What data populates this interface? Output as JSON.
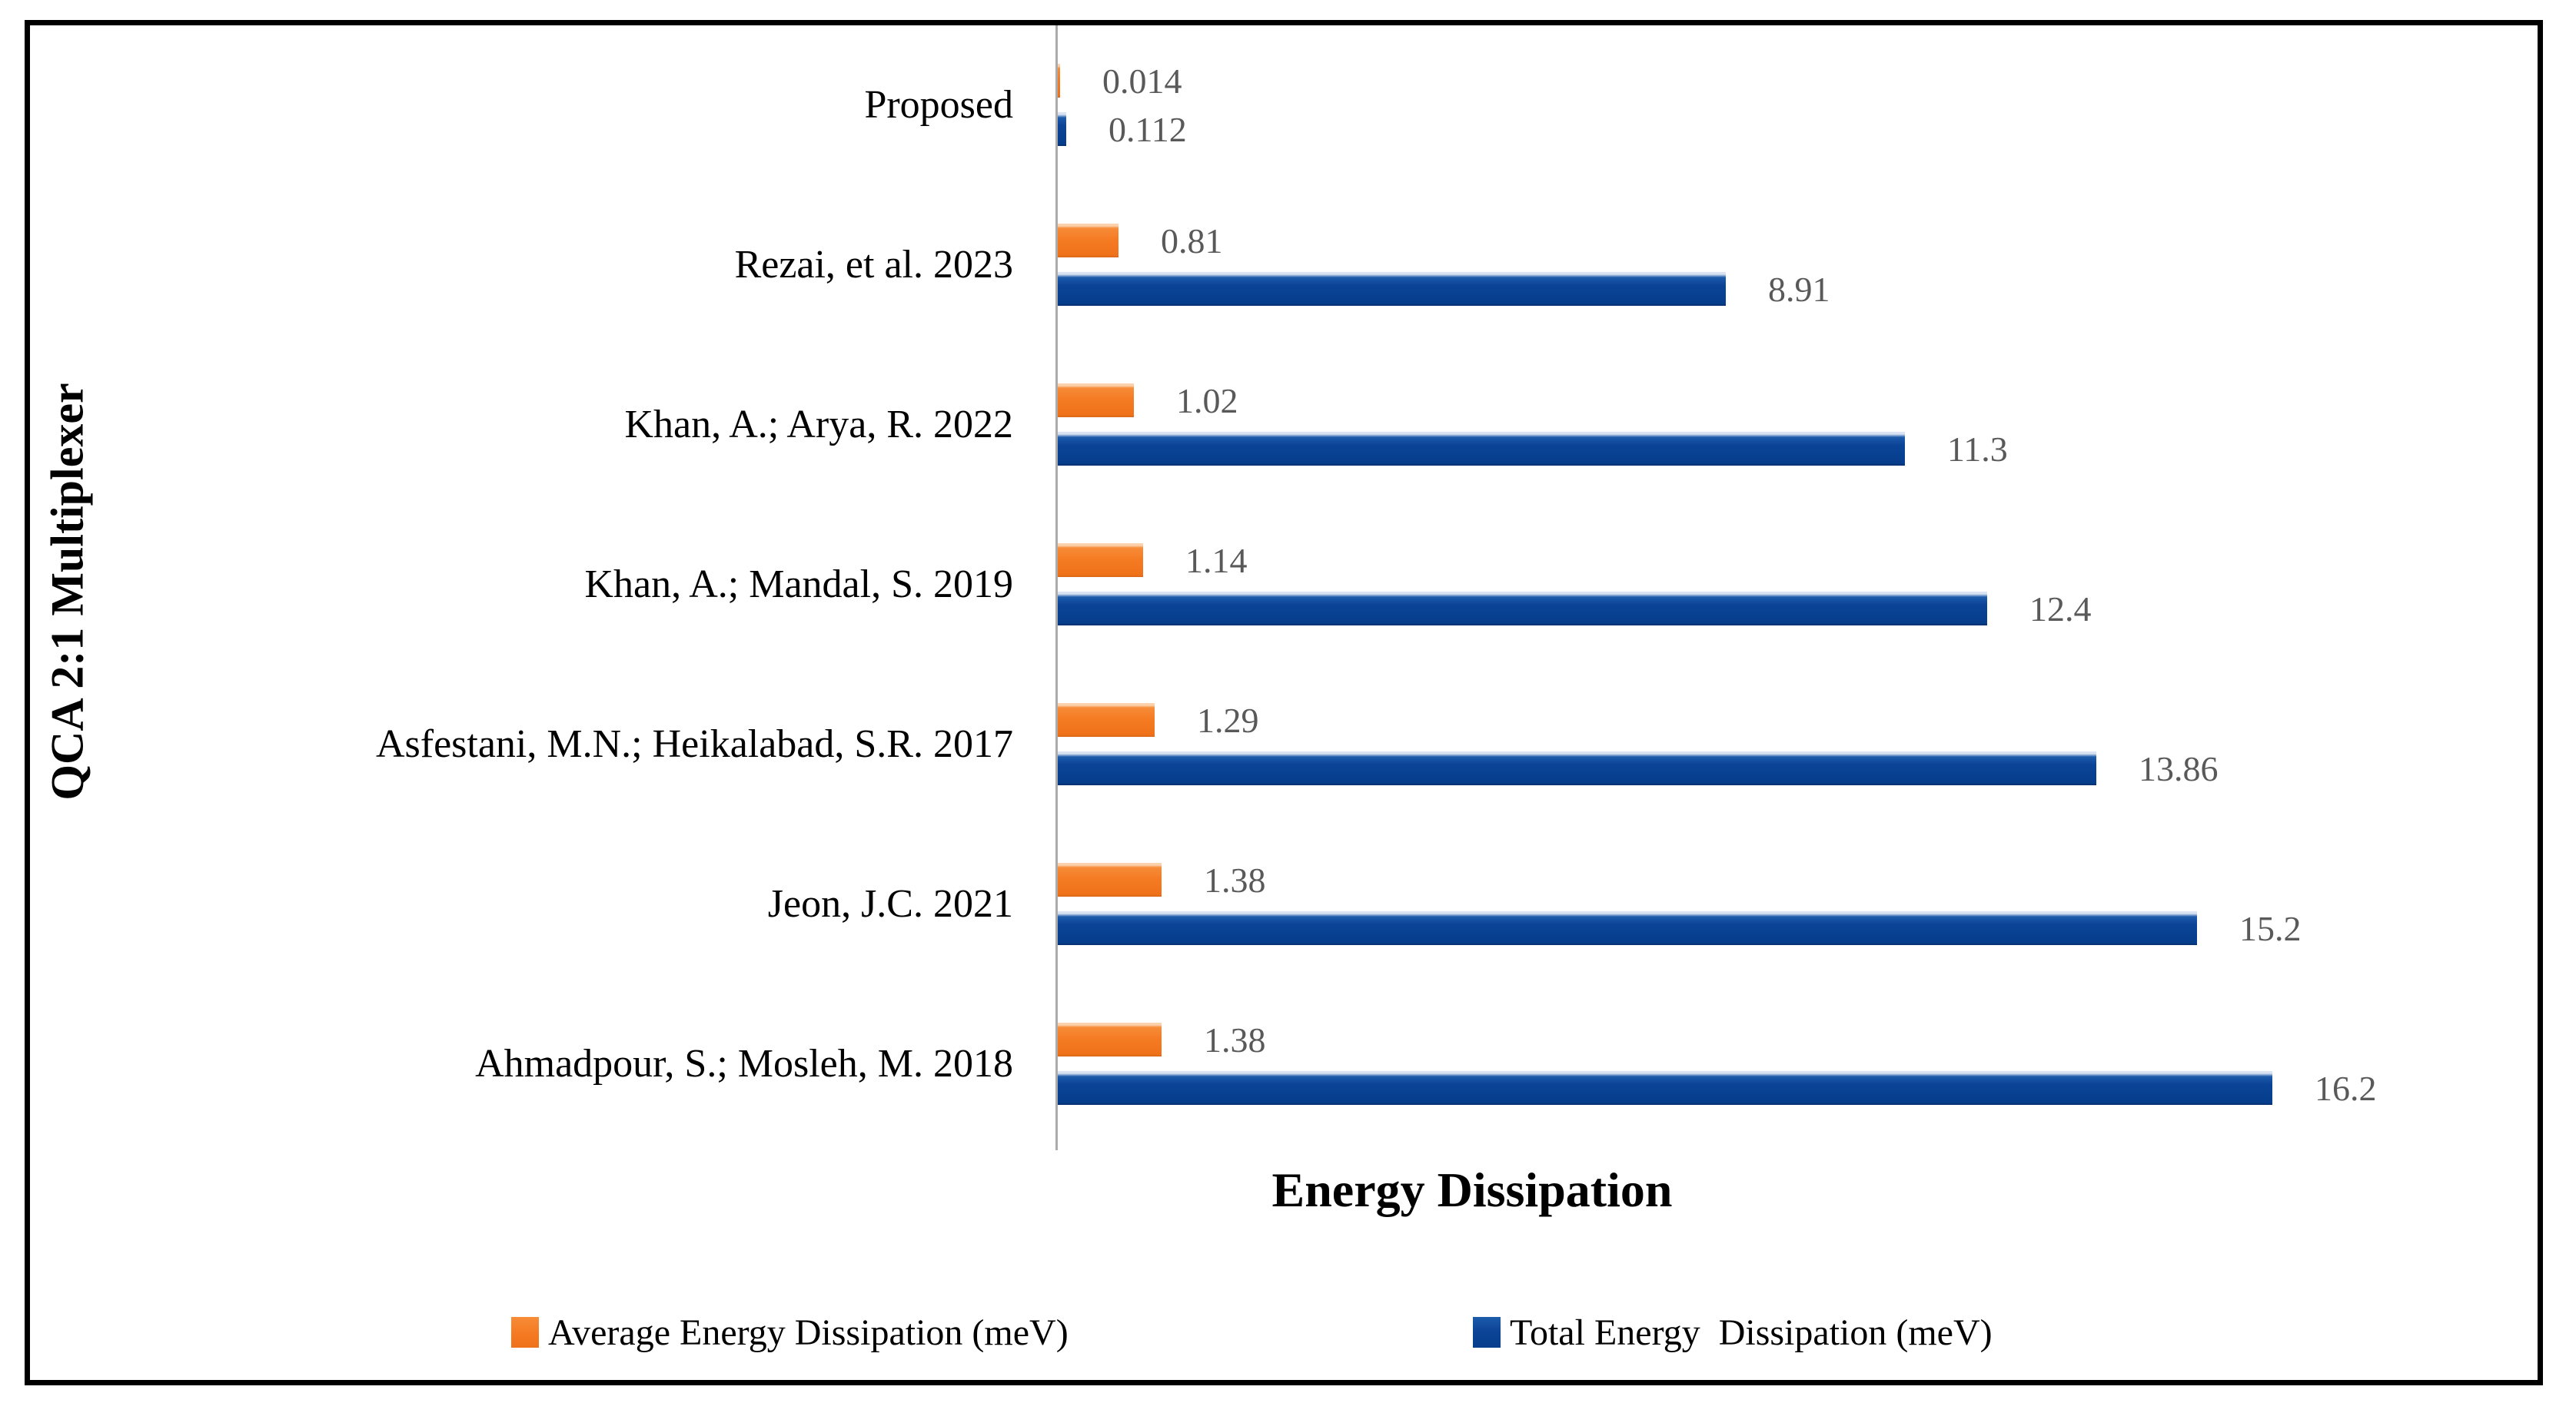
{
  "chart_data": {
    "type": "bar",
    "orientation": "horizontal",
    "title": "",
    "xlabel": "Energy Dissipation",
    "ylabel": "QCA 2:1 Multiplexer",
    "axis_range": [
      0,
      20
    ],
    "grid": false,
    "legend_position": "bottom",
    "value_labels_shown": true,
    "categories": [
      "Proposed",
      "Rezai, et al. 2023",
      "Khan, A.; Arya, R. 2022",
      "Khan, A.; Mandal, S. 2019",
      "Asfestani, M.N.; Heikalabad, S.R. 2017",
      "Jeon, J.C. 2021",
      "Ahmadpour, S.; Mosleh, M. 2018"
    ],
    "series": [
      {
        "name": "Average Energy Dissipation (meV)",
        "color": "#F57C24",
        "values": [
          0.014,
          0.81,
          1.02,
          1.14,
          1.29,
          1.38,
          1.38
        ],
        "labels": [
          "0.014",
          "0.81",
          "1.02",
          "1.14",
          "1.29",
          "1.38",
          "1.38"
        ]
      },
      {
        "name": "Total Energy  Dissipation (meV)",
        "color": "#0B4397",
        "values": [
          0.112,
          8.91,
          11.3,
          12.4,
          13.86,
          15.2,
          16.2
        ],
        "labels": [
          "0.112",
          "8.91",
          "11.3",
          "12.4",
          "13.86",
          "15.2",
          "16.2"
        ]
      }
    ]
  },
  "colors": {
    "bar_orange": "#F57C24",
    "bar_orange_light": "#FBD2AC",
    "bar_orange_dark": "#D9661A",
    "bar_blue": "#0B4397",
    "bar_blue_light": "#D9E3F1",
    "bar_blue_dark": "#082F6B",
    "value_label": "#595959",
    "axis_line": "#ABABAB",
    "border": "#000000",
    "background": "#FFFFFF"
  }
}
